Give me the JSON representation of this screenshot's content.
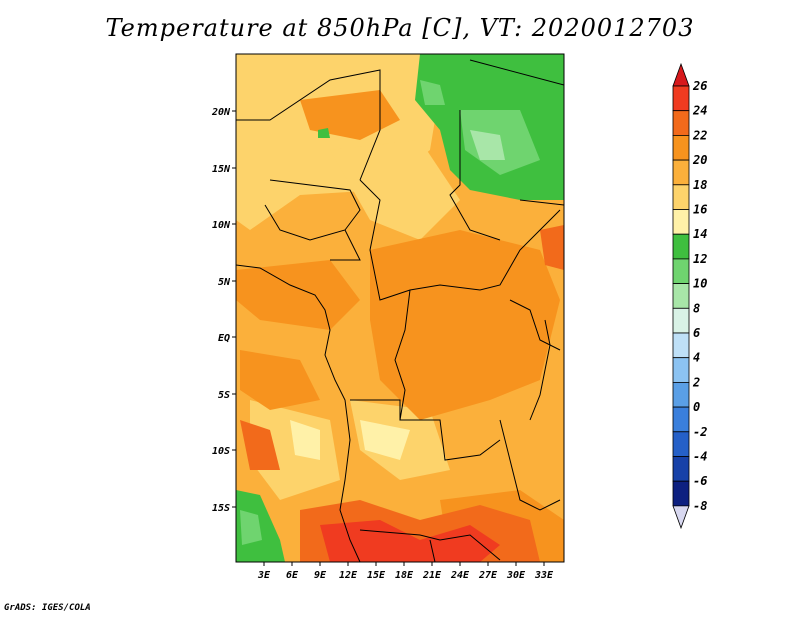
{
  "title": "Temperature at 850hPa [C], VT: 2020012703",
  "credit": "GrADS: IGES/COLA",
  "map": {
    "lat_labels": [
      "20N",
      "15N",
      "10N",
      "5N",
      "EQ",
      "5S",
      "10S",
      "15S"
    ],
    "lon_labels": [
      "3E",
      "6E",
      "9E",
      "12E",
      "15E",
      "18E",
      "21E",
      "24E",
      "27E",
      "30E",
      "33E"
    ],
    "lat_range": [
      -20,
      25
    ],
    "lon_range": [
      0,
      35
    ]
  },
  "colorbar": {
    "levels": [
      "26",
      "24",
      "22",
      "20",
      "18",
      "16",
      "14",
      "12",
      "10",
      "8",
      "6",
      "4",
      "2",
      "0",
      "-2",
      "-4",
      "-6",
      "-8"
    ],
    "colors": [
      "#d7191c",
      "#f03b20",
      "#f26a1b",
      "#f7931e",
      "#fbb03b",
      "#fdd36b",
      "#fff1a8",
      "#3fbf3f",
      "#6fd46f",
      "#a8e6a8",
      "#d9f2e6",
      "#bfe0f7",
      "#8cc3f2",
      "#5a9fe6",
      "#3a7fdc",
      "#2560c8",
      "#1741a8",
      "#0d2080",
      "#d8d8f0"
    ]
  }
}
